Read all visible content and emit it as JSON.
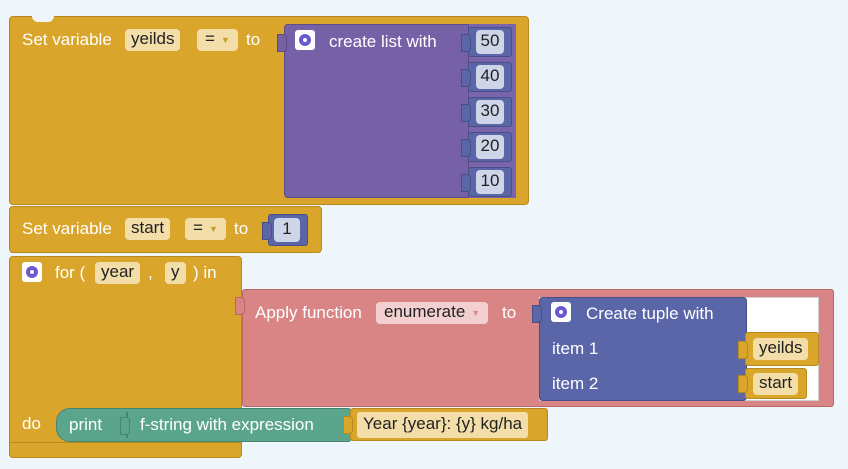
{
  "set1": {
    "prefix": "Set variable",
    "var": "yeilds",
    "op": "=",
    "to": "to"
  },
  "create_list": {
    "label": "create list with",
    "items": [
      "50",
      "40",
      "30",
      "20",
      "10"
    ]
  },
  "set2": {
    "prefix": "Set variable",
    "var": "start",
    "op": "=",
    "to": "to",
    "value": "1"
  },
  "for_block": {
    "prefix": "for (",
    "var1": "year",
    "comma": ",",
    "var2": "y",
    "suffix": ") in",
    "do_label": "do"
  },
  "apply": {
    "label": "Apply function",
    "func": "enumerate",
    "to": "to"
  },
  "tuple": {
    "label": "Create tuple with",
    "item1_label": "item 1",
    "item1_value": "yeilds",
    "item2_label": "item 2",
    "item2_value": "start"
  },
  "print": {
    "label": "print"
  },
  "fstring": {
    "label": "f-string with expression",
    "value": "Year {year}: {y} kg/ha"
  },
  "colors": {
    "gold": "#d9a52a",
    "purple": "#7660a6",
    "rose": "#d98585",
    "indigo": "#5b66a8",
    "teal": "#5ba58c"
  }
}
